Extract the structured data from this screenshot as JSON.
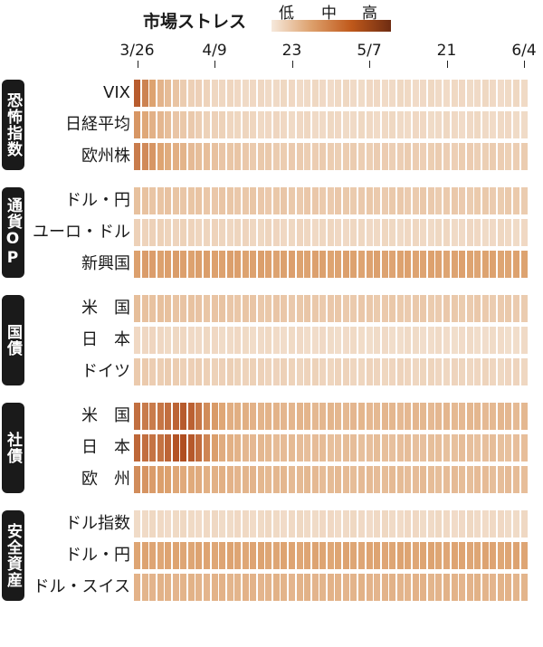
{
  "legend": {
    "title": "市場ストレス",
    "low": "低",
    "mid": "中",
    "high": "高"
  },
  "chart_data": {
    "type": "heatmap",
    "x_tick_labels": [
      "3/26",
      "4/9",
      "23",
      "5/7",
      "21",
      "6/4"
    ],
    "x_tick_index": [
      0,
      10,
      20,
      30,
      40,
      50
    ],
    "num_days": 51,
    "colors": {
      "low": "#f6ebe0",
      "mid": "#dda26f",
      "high": "#a83e12"
    },
    "groups": [
      {
        "label": "恐怖指数",
        "rows": [
          {
            "label": "VIX",
            "start": 0.85,
            "end": 0.12,
            "decay": 0.11
          },
          {
            "label": "日経平均",
            "start": 0.55,
            "end": 0.12,
            "decay": 0.07
          },
          {
            "label": "欧州株",
            "start": 0.7,
            "end": 0.2,
            "decay": 0.06
          }
        ]
      },
      {
        "label": "通貨OP",
        "rows": [
          {
            "label": "ドル・円",
            "start": 0.28,
            "end": 0.22,
            "decay": 0.02
          },
          {
            "label": "ユーロ・ドル",
            "start": 0.18,
            "end": 0.12,
            "decay": 0.02
          },
          {
            "label": "新興国",
            "start": 0.52,
            "end": 0.48,
            "decay": 0.01
          }
        ]
      },
      {
        "label": "国債",
        "rows": [
          {
            "label": "米　国",
            "start": 0.3,
            "end": 0.22,
            "decay": 0.02
          },
          {
            "label": "日　本",
            "start": 0.14,
            "end": 0.1,
            "decay": 0.02
          },
          {
            "label": "ドイツ",
            "start": 0.22,
            "end": 0.14,
            "decay": 0.02
          }
        ]
      },
      {
        "label": "社債",
        "rows": [
          {
            "label": "米　国",
            "start": 0.75,
            "end": 0.35,
            "decay": 0.05,
            "peak_day": 6,
            "peak": 0.85
          },
          {
            "label": "日　本",
            "start": 0.8,
            "end": 0.3,
            "decay": 0.05,
            "peak_day": 6,
            "peak": 0.92
          },
          {
            "label": "欧　州",
            "start": 0.6,
            "end": 0.32,
            "decay": 0.04
          }
        ]
      },
      {
        "label": "安全資産",
        "rows": [
          {
            "label": "ドル指数",
            "start": 0.12,
            "end": 0.12,
            "decay": 0.0
          },
          {
            "label": "ドル・円",
            "start": 0.48,
            "end": 0.48,
            "decay": 0.0
          },
          {
            "label": "ドル・スイス",
            "start": 0.38,
            "end": 0.4,
            "decay": 0.0
          }
        ]
      }
    ]
  }
}
